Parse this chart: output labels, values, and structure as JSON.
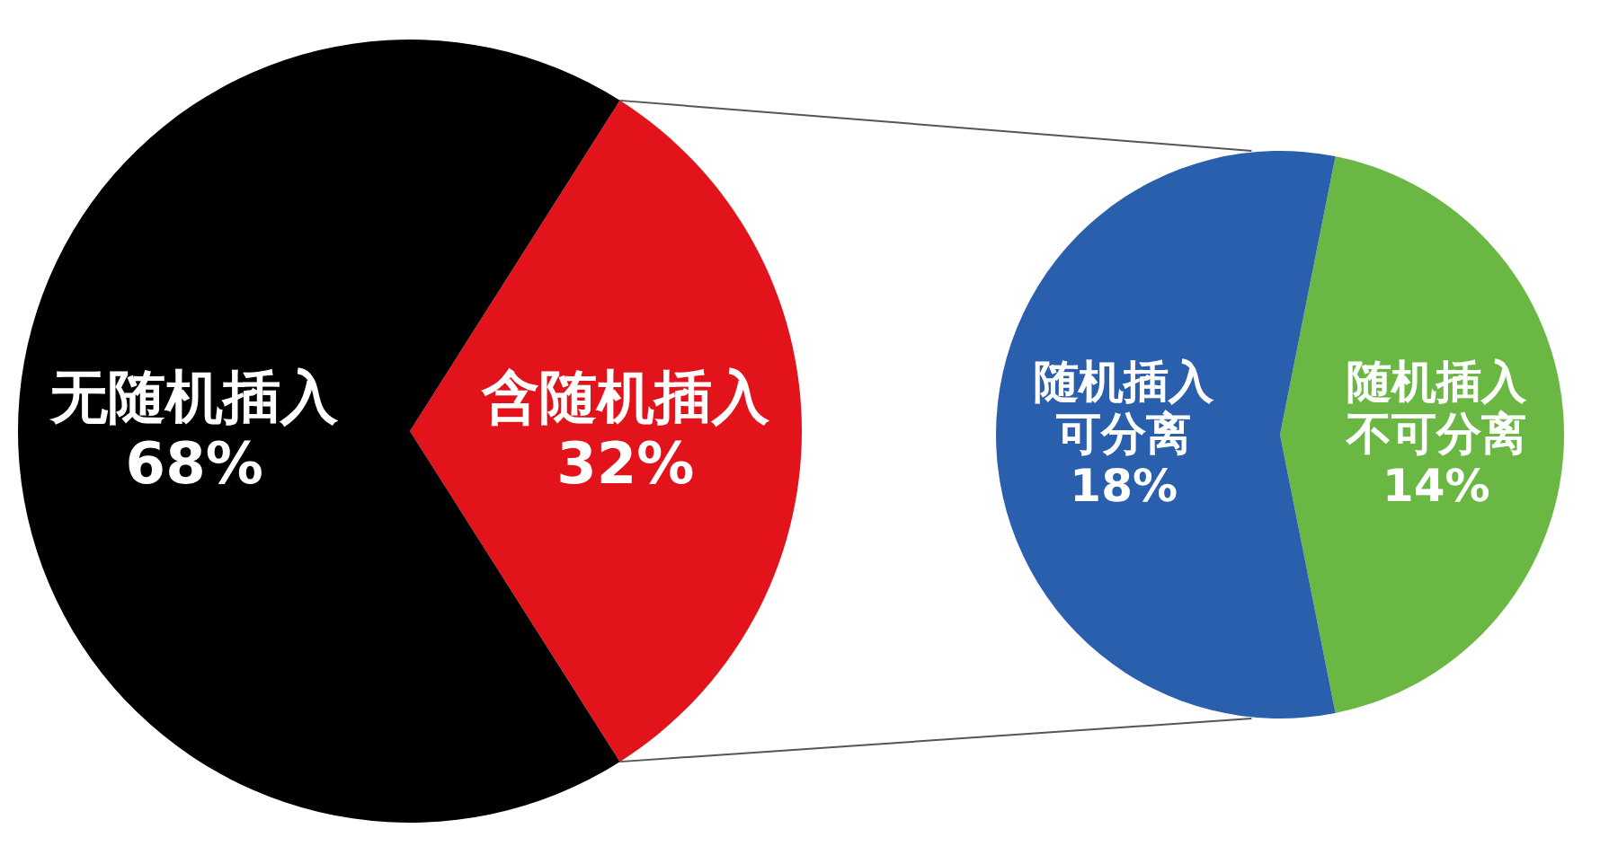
{
  "chart_data": [
    {
      "type": "pie",
      "categories": [
        "无随机插入",
        "含随机插入"
      ],
      "values": [
        68,
        32
      ],
      "colors": [
        "#000000",
        "#e3131b"
      ],
      "value_labels": [
        "68%",
        "32%"
      ]
    },
    {
      "type": "pie",
      "categories": [
        "随机插入可分离",
        "随机插入不可分离"
      ],
      "values": [
        18,
        14
      ],
      "colors": [
        "#2a5fad",
        "#6ab843"
      ],
      "value_labels": [
        "18%",
        "14%"
      ]
    }
  ]
}
